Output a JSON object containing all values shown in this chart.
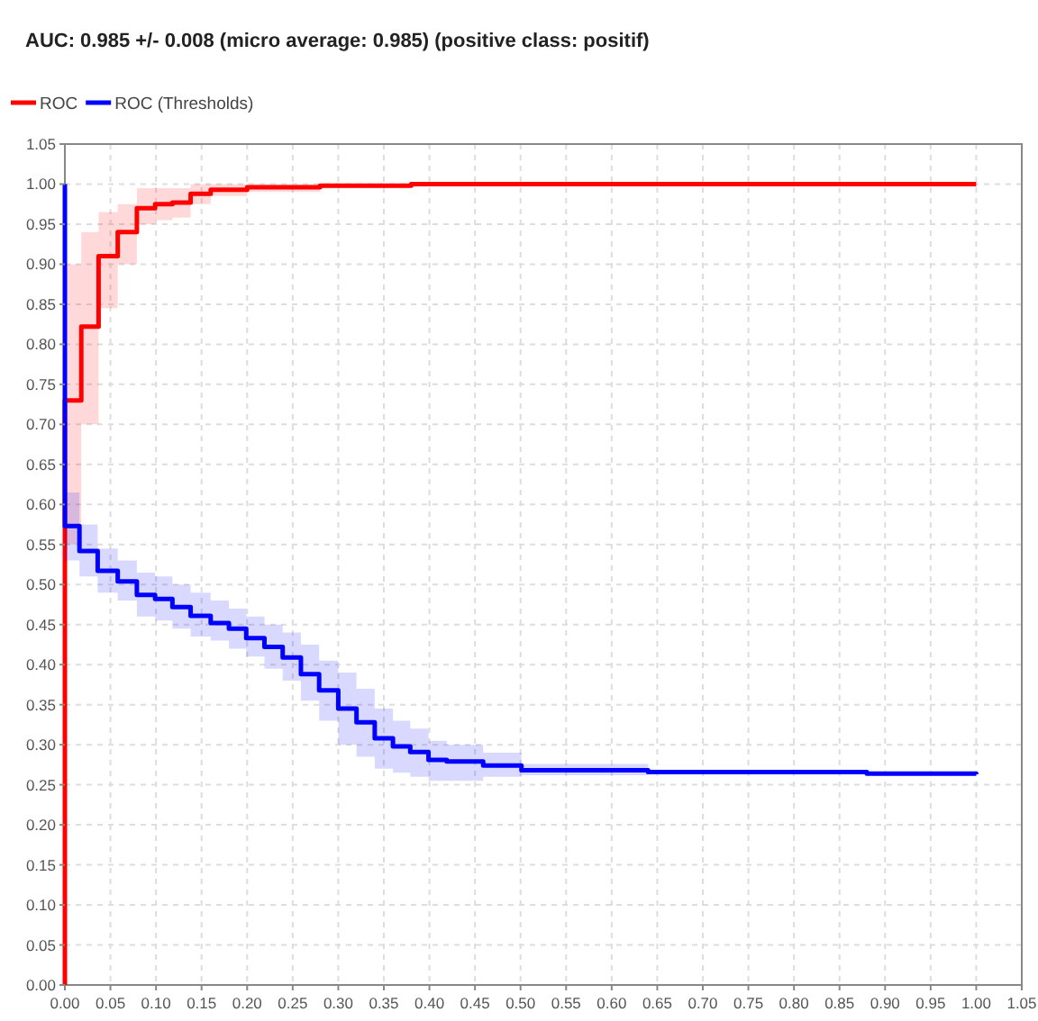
{
  "chart_data": {
    "type": "step",
    "title": "AUC: 0.985 +/- 0.008 (micro average: 0.985) (positive class: positif)",
    "xlim": [
      0,
      1.05
    ],
    "ylim": [
      0,
      1.05
    ],
    "xticks": [
      {
        "value": 0,
        "label": "0.00"
      },
      0.05,
      {
        "value": 0.1,
        "label": "0.10"
      },
      0.15,
      {
        "value": 0.2,
        "label": "0.20"
      },
      0.25,
      {
        "value": 0.3,
        "label": "0.30"
      },
      0.35,
      {
        "value": 0.4,
        "label": "0.40"
      },
      0.45,
      {
        "value": 0.5,
        "label": "0.50"
      },
      0.55,
      {
        "value": 0.6,
        "label": "0.60"
      },
      0.65,
      {
        "value": 0.7,
        "label": "0.70"
      },
      0.75,
      {
        "value": 0.8,
        "label": "0.80"
      },
      0.85,
      {
        "value": 0.9,
        "label": "0.90"
      },
      0.95,
      {
        "value": 1,
        "label": "1.00"
      },
      1.05
    ],
    "yticks": [
      {
        "value": 0,
        "label": "0.00"
      },
      0.05,
      {
        "value": 0.1,
        "label": "0.10"
      },
      0.15,
      {
        "value": 0.2,
        "label": "0.20"
      },
      0.25,
      {
        "value": 0.3,
        "label": "0.30"
      },
      0.35,
      {
        "value": 0.4,
        "label": "0.40"
      },
      0.45,
      {
        "value": 0.5,
        "label": "0.50"
      },
      0.55,
      {
        "value": 0.6,
        "label": "0.60"
      },
      0.65,
      {
        "value": 0.7,
        "label": "0.70"
      },
      0.75,
      {
        "value": 0.8,
        "label": "0.80"
      },
      0.85,
      {
        "value": 0.9,
        "label": "0.90"
      },
      0.95,
      {
        "value": 1,
        "label": "1.00"
      },
      1.05
    ],
    "grid": true,
    "legend": "top left",
    "line_style": "solid",
    "marker": "none",
    "series": [
      {
        "name": "ROC",
        "color": "#ff0000",
        "x": [
          0,
          0,
          0.018,
          0.037,
          0.058,
          0.079,
          0.099,
          0.118,
          0.138,
          0.16,
          0.2,
          0.28,
          0.38,
          1.0
        ],
        "values": [
          0,
          0.73,
          0.822,
          0.91,
          0.94,
          0.97,
          0.975,
          0.977,
          0.988,
          0.993,
          0.996,
          0.998,
          1.0,
          1.0
        ],
        "lower": [
          0,
          0.55,
          0.7,
          0.845,
          0.9,
          0.95,
          0.955,
          0.958,
          0.975,
          0.985,
          0.99,
          0.995,
          1.0,
          1.0
        ],
        "upper": [
          0,
          0.9,
          0.94,
          0.965,
          0.975,
          0.995,
          0.995,
          0.995,
          1.0,
          1.0,
          1.0,
          1.0,
          1.0,
          1.0
        ]
      },
      {
        "name": "ROC (Thresholds)",
        "color": "#0000ff",
        "x": [
          0,
          0,
          0.016,
          0.036,
          0.058,
          0.079,
          0.099,
          0.118,
          0.138,
          0.16,
          0.18,
          0.199,
          0.219,
          0.239,
          0.259,
          0.279,
          0.3,
          0.32,
          0.34,
          0.36,
          0.379,
          0.399,
          0.419,
          0.459,
          0.501,
          0.64,
          0.88,
          1.0
        ],
        "values": [
          1.0,
          0.573,
          0.542,
          0.517,
          0.504,
          0.487,
          0.482,
          0.472,
          0.461,
          0.452,
          0.445,
          0.433,
          0.422,
          0.409,
          0.388,
          0.368,
          0.345,
          0.328,
          0.308,
          0.298,
          0.291,
          0.281,
          0.279,
          0.274,
          0.268,
          0.266,
          0.264,
          0.263
        ],
        "lower": [
          1.0,
          0.53,
          0.51,
          0.49,
          0.48,
          0.46,
          0.455,
          0.445,
          0.435,
          0.43,
          0.42,
          0.41,
          0.395,
          0.38,
          0.355,
          0.33,
          0.3,
          0.285,
          0.27,
          0.265,
          0.26,
          0.255,
          0.255,
          0.26,
          0.262,
          0.264,
          0.263,
          0.263
        ],
        "upper": [
          1.0,
          0.615,
          0.575,
          0.545,
          0.53,
          0.515,
          0.51,
          0.5,
          0.49,
          0.48,
          0.47,
          0.46,
          0.45,
          0.44,
          0.425,
          0.405,
          0.39,
          0.37,
          0.345,
          0.33,
          0.32,
          0.305,
          0.3,
          0.29,
          0.276,
          0.268,
          0.265,
          0.263
        ]
      }
    ]
  }
}
